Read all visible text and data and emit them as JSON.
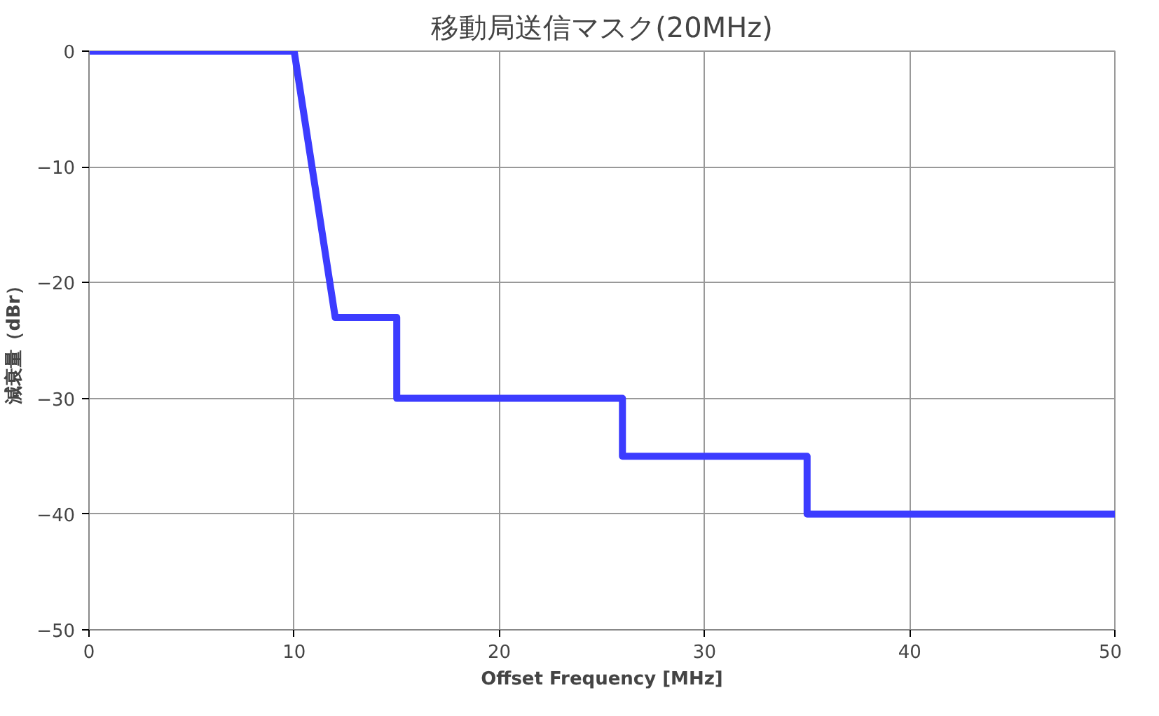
{
  "chart_data": {
    "type": "line",
    "title": "移動局送信マスク(20MHz)",
    "xlabel": "Offset Frequency [MHz]",
    "ylabel": "減衰量（dBr）",
    "x": [
      0,
      10,
      12,
      15,
      15,
      26,
      26,
      35,
      35,
      50
    ],
    "series": [
      {
        "color": "#3c3cff",
        "values": [
          0,
          0,
          -23,
          -23,
          -30,
          -30,
          -35,
          -35,
          -40,
          -40
        ]
      }
    ],
    "xlim": [
      0,
      50
    ],
    "xticks": [
      0,
      10,
      20,
      30,
      40,
      50
    ],
    "ylim": [
      -50,
      0
    ],
    "yticks": [
      0,
      -10,
      -20,
      -30,
      -40,
      -50
    ],
    "grid": true,
    "marker": "none",
    "line_style": "solid"
  }
}
